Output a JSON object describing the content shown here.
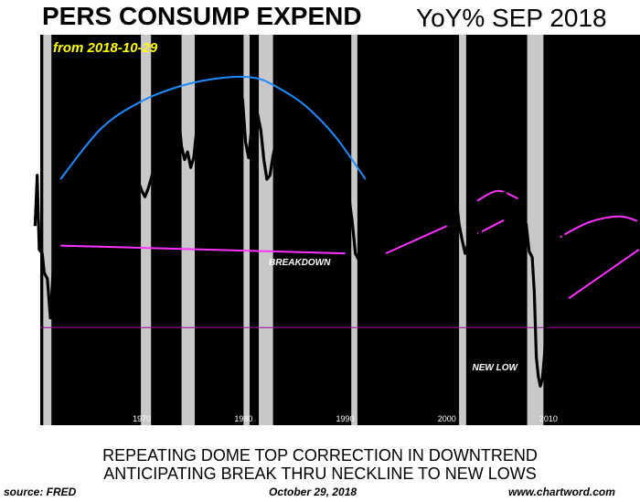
{
  "header": {
    "title_left": "PERS CONSUMP EXPEND",
    "title_right": "YoY%  SEP 2018",
    "subtitle": "from 2018-10-29"
  },
  "footer": {
    "line1": "REPEATING DOME TOP CORRECTION IN DOWNTREND",
    "line2": "ANTICIPATING BREAK THRU NECKLINE TO NEW LOWS",
    "source": "source: FRED",
    "date": "October 29, 2018",
    "website": "www.chartword.com"
  },
  "colors": {
    "plot_bg": "#000000",
    "recession": "#c8c8c8",
    "series": "#000000",
    "dome": "#1e8cff",
    "trend": "#ff33ff",
    "zero_line": "#990099",
    "subtitle": "#ffff00"
  },
  "chart_data": {
    "type": "line",
    "title": "PERS CONSUMP EXPEND",
    "xlabel": "",
    "ylabel": "",
    "xlim": [
      1960,
      2019
    ],
    "ylim": [
      -5.0,
      15.0
    ],
    "y_ticks": [
      15.0,
      12.5,
      10.0,
      7.5,
      5.0,
      2.5,
      0.0,
      -2.5,
      -5.0
    ],
    "y_tick_labels": [
      "15.0",
      "12.5",
      "10.0",
      "7.5",
      "5.0",
      "2.5",
      "0.0",
      "-2.5",
      "-5.0"
    ],
    "x_ticks": [
      1970,
      1980,
      1990,
      2000,
      2010
    ],
    "x_tick_labels": [
      "1970",
      "1980",
      "1990",
      "2000",
      "2010"
    ],
    "grid": false,
    "zero_line": 0.0,
    "recessions": [
      [
        1960.3,
        1961.1
      ],
      [
        1969.9,
        1970.9
      ],
      [
        1973.9,
        1975.2
      ],
      [
        1980.0,
        1980.6
      ],
      [
        1981.5,
        1982.9
      ],
      [
        1990.6,
        1991.2
      ],
      [
        2001.2,
        2001.9
      ],
      [
        2007.9,
        2009.5
      ]
    ],
    "series": [
      {
        "values": [
          [
            1959.5,
            5.2
          ],
          [
            1959.7,
            7.8
          ],
          [
            1959.9,
            4.0
          ],
          [
            1960.2,
            3.8
          ],
          [
            1960.4,
            2.8
          ],
          [
            1960.7,
            2.5
          ],
          [
            1961.0,
            0.5
          ],
          [
            1961.3,
            3.2
          ],
          [
            1961.6,
            4.0
          ],
          [
            1961.9,
            6.3
          ],
          [
            1962.2,
            6.2
          ],
          [
            1962.5,
            5.7
          ],
          [
            1962.8,
            5.2
          ],
          [
            1963.1,
            5.6
          ],
          [
            1963.4,
            5.3
          ],
          [
            1963.7,
            5.9
          ],
          [
            1964.0,
            6.8
          ],
          [
            1964.3,
            7.6
          ],
          [
            1964.6,
            7.9
          ],
          [
            1964.9,
            7.3
          ],
          [
            1965.2,
            7.0
          ],
          [
            1965.5,
            7.8
          ],
          [
            1965.8,
            9.0
          ],
          [
            1966.1,
            8.7
          ],
          [
            1966.4,
            7.6
          ],
          [
            1966.7,
            6.5
          ],
          [
            1967.0,
            5.4
          ],
          [
            1967.3,
            4.6
          ],
          [
            1967.6,
            6.0
          ],
          [
            1967.9,
            7.6
          ],
          [
            1968.2,
            9.2
          ],
          [
            1968.5,
            9.9
          ],
          [
            1968.8,
            9.5
          ],
          [
            1969.1,
            8.6
          ],
          [
            1969.4,
            8.0
          ],
          [
            1969.7,
            7.4
          ],
          [
            1970.0,
            7.0
          ],
          [
            1970.3,
            6.7
          ],
          [
            1970.6,
            7.1
          ],
          [
            1970.9,
            7.6
          ],
          [
            1971.2,
            8.2
          ],
          [
            1971.5,
            8.8
          ],
          [
            1971.8,
            8.9
          ],
          [
            1972.1,
            9.4
          ],
          [
            1972.4,
            10.0
          ],
          [
            1972.7,
            10.4
          ],
          [
            1973.0,
            11.2
          ],
          [
            1973.3,
            11.5
          ],
          [
            1973.6,
            10.9
          ],
          [
            1973.9,
            9.3
          ],
          [
            1974.2,
            8.6
          ],
          [
            1974.5,
            9.0
          ],
          [
            1974.8,
            8.2
          ],
          [
            1975.1,
            8.7
          ],
          [
            1975.4,
            10.2
          ],
          [
            1975.7,
            11.4
          ],
          [
            1976.0,
            12.2
          ],
          [
            1976.3,
            11.3
          ],
          [
            1976.6,
            10.6
          ],
          [
            1976.9,
            11.0
          ],
          [
            1977.2,
            11.4
          ],
          [
            1977.5,
            11.0
          ],
          [
            1977.8,
            10.4
          ],
          [
            1978.1,
            10.2
          ],
          [
            1978.4,
            11.6
          ],
          [
            1978.7,
            12.5
          ],
          [
            1979.0,
            12.0
          ],
          [
            1979.3,
            11.3
          ],
          [
            1979.6,
            11.4
          ],
          [
            1979.9,
            11.7
          ],
          [
            1980.2,
            9.5
          ],
          [
            1980.5,
            8.7
          ],
          [
            1980.8,
            10.3
          ],
          [
            1981.1,
            11.5
          ],
          [
            1981.4,
            10.9
          ],
          [
            1981.7,
            10.1
          ],
          [
            1982.0,
            8.6
          ],
          [
            1982.3,
            7.6
          ],
          [
            1982.6,
            7.8
          ],
          [
            1982.9,
            8.8
          ],
          [
            1983.2,
            9.5
          ],
          [
            1983.5,
            10.5
          ],
          [
            1983.8,
            10.1
          ],
          [
            1984.1,
            9.4
          ],
          [
            1984.4,
            9.3
          ],
          [
            1984.7,
            8.5
          ],
          [
            1985.0,
            8.0
          ],
          [
            1985.3,
            7.7
          ],
          [
            1985.6,
            7.4
          ],
          [
            1985.9,
            7.1
          ],
          [
            1986.2,
            5.8
          ],
          [
            1986.5,
            5.8
          ],
          [
            1986.8,
            6.5
          ],
          [
            1987.1,
            6.1
          ],
          [
            1987.4,
            6.9
          ],
          [
            1987.7,
            6.8
          ],
          [
            1988.0,
            7.4
          ],
          [
            1988.3,
            7.2
          ],
          [
            1988.6,
            7.4
          ],
          [
            1988.9,
            6.8
          ],
          [
            1989.2,
            6.9
          ],
          [
            1989.5,
            6.4
          ],
          [
            1989.8,
            6.0
          ],
          [
            1990.1,
            6.7
          ],
          [
            1990.4,
            6.6
          ],
          [
            1990.7,
            5.4
          ],
          [
            1991.0,
            3.8
          ],
          [
            1991.3,
            3.5
          ],
          [
            1991.6,
            3.2
          ],
          [
            1991.9,
            4.0
          ],
          [
            1992.2,
            5.6
          ],
          [
            1992.5,
            6.2
          ],
          [
            1992.8,
            6.0
          ],
          [
            1993.1,
            5.5
          ],
          [
            1993.4,
            6.2
          ],
          [
            1993.7,
            5.9
          ],
          [
            1994.0,
            6.3
          ],
          [
            1994.3,
            5.6
          ],
          [
            1994.6,
            5.2
          ],
          [
            1994.9,
            5.8
          ],
          [
            1995.2,
            4.7
          ],
          [
            1995.5,
            5.0
          ],
          [
            1995.8,
            5.1
          ],
          [
            1996.1,
            5.4
          ],
          [
            1996.4,
            5.7
          ],
          [
            1996.7,
            5.2
          ],
          [
            1997.0,
            5.5
          ],
          [
            1997.3,
            5.1
          ],
          [
            1997.6,
            5.6
          ],
          [
            1997.9,
            5.5
          ],
          [
            1998.2,
            5.8
          ],
          [
            1998.5,
            6.0
          ],
          [
            1998.8,
            6.2
          ],
          [
            1999.1,
            6.6
          ],
          [
            1999.4,
            6.5
          ],
          [
            1999.7,
            6.8
          ],
          [
            2000.0,
            7.5
          ],
          [
            2000.3,
            8.5
          ],
          [
            2000.6,
            7.7
          ],
          [
            2000.9,
            6.8
          ],
          [
            2001.2,
            5.3
          ],
          [
            2001.5,
            4.5
          ],
          [
            2001.8,
            3.8
          ],
          [
            2002.1,
            4.3
          ],
          [
            2002.4,
            4.5
          ],
          [
            2002.7,
            4.8
          ],
          [
            2003.0,
            4.5
          ],
          [
            2003.3,
            4.9
          ],
          [
            2003.6,
            5.6
          ],
          [
            2003.9,
            5.7
          ],
          [
            2004.2,
            6.3
          ],
          [
            2004.5,
            6.5
          ],
          [
            2004.8,
            6.2
          ],
          [
            2005.1,
            6.6
          ],
          [
            2005.4,
            6.8
          ],
          [
            2005.7,
            6.9
          ],
          [
            2006.0,
            6.6
          ],
          [
            2006.3,
            6.0
          ],
          [
            2006.6,
            5.7
          ],
          [
            2006.9,
            5.4
          ],
          [
            2007.2,
            5.3
          ],
          [
            2007.5,
            5.0
          ],
          [
            2007.8,
            5.3
          ],
          [
            2008.1,
            3.9
          ],
          [
            2008.4,
            3.6
          ],
          [
            2008.6,
            1.8
          ],
          [
            2008.8,
            -1.5
          ],
          [
            2009.0,
            -2.5
          ],
          [
            2009.2,
            -3.0
          ],
          [
            2009.4,
            -2.6
          ],
          [
            2009.6,
            -1.4
          ],
          [
            2009.8,
            0.6
          ],
          [
            2010.0,
            2.7
          ],
          [
            2010.3,
            3.6
          ],
          [
            2010.6,
            3.8
          ],
          [
            2010.9,
            4.5
          ],
          [
            2011.2,
            4.9
          ],
          [
            2011.5,
            4.7
          ],
          [
            2011.8,
            4.1
          ],
          [
            2012.1,
            4.0
          ],
          [
            2012.4,
            3.6
          ],
          [
            2012.7,
            3.1
          ],
          [
            2013.0,
            2.7
          ],
          [
            2013.3,
            2.9
          ],
          [
            2013.6,
            3.4
          ],
          [
            2013.9,
            3.8
          ],
          [
            2014.2,
            4.2
          ],
          [
            2014.5,
            4.6
          ],
          [
            2014.8,
            4.5
          ],
          [
            2015.1,
            3.7
          ],
          [
            2015.4,
            3.5
          ],
          [
            2015.7,
            3.9
          ],
          [
            2016.0,
            3.4
          ],
          [
            2016.3,
            3.3
          ],
          [
            2016.6,
            3.9
          ],
          [
            2016.9,
            4.1
          ],
          [
            2017.2,
            4.4
          ],
          [
            2017.5,
            4.0
          ],
          [
            2017.8,
            4.3
          ],
          [
            2018.1,
            4.6
          ],
          [
            2018.4,
            4.8
          ],
          [
            2018.7,
            5.2
          ],
          [
            2018.9,
            5.5
          ]
        ]
      }
    ],
    "annotations": [
      {
        "text": "BREAKDOWN",
        "x": 1982.5,
        "y": 3.2
      },
      {
        "text": "NEW LOW",
        "x": 2002.5,
        "y": -2.2
      }
    ],
    "overlays": {
      "dome_1961_1992": [
        [
          1962,
          7.6
        ],
        [
          1966,
          10.2
        ],
        [
          1970,
          11.6
        ],
        [
          1974,
          12.4
        ],
        [
          1978,
          12.8
        ],
        [
          1981,
          12.8
        ],
        [
          1983,
          12.4
        ],
        [
          1986,
          11.4
        ],
        [
          1989,
          9.8
        ],
        [
          1992,
          7.6
        ]
      ],
      "neckline": [
        [
          1962,
          4.2
        ],
        [
          1990,
          3.8
        ]
      ],
      "trend_1994_2000": [
        [
          1994,
          3.8
        ],
        [
          2000,
          5.2
        ]
      ],
      "dome_2003_2007": [
        [
          2003,
          6.5
        ],
        [
          2005,
          7.0
        ],
        [
          2007,
          6.6
        ]
      ],
      "trend_2003_2006": [
        [
          2003,
          4.8
        ],
        [
          2005.6,
          5.5
        ]
      ],
      "dome_2011_2019": [
        [
          2011,
          4.6
        ],
        [
          2014,
          5.4
        ],
        [
          2017,
          5.7
        ],
        [
          2019,
          5.4
        ]
      ],
      "trend_2012_2019": [
        [
          2012,
          1.5
        ],
        [
          2018.9,
          4.0
        ]
      ]
    }
  }
}
